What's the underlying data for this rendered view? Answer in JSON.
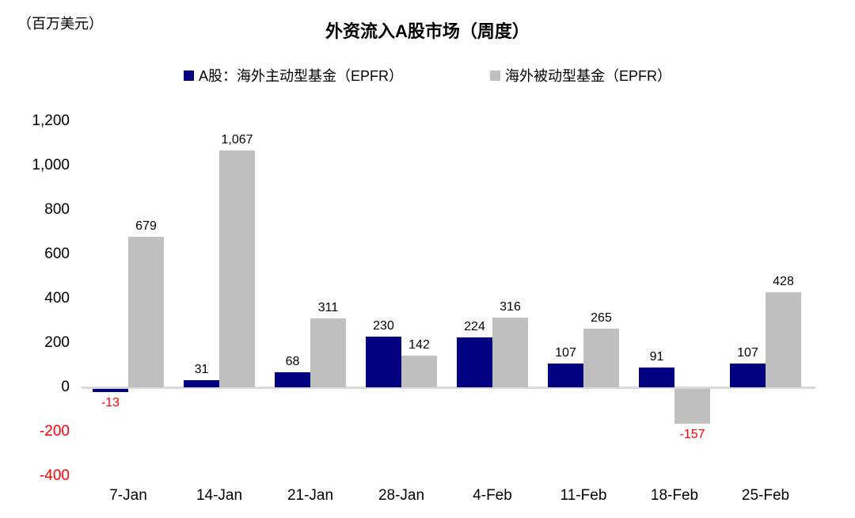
{
  "unit_label": "（百万美元）",
  "title": "外资流入A股市场（周度）",
  "colors": {
    "active_series": "#000080",
    "passive_series": "#bfbfbf",
    "negative_text": "#ff0000",
    "positive_text": "#000000",
    "axis_line": "#d9d9d9"
  },
  "chart_data": {
    "type": "bar",
    "title": "外资流入A股市场（周度）",
    "ylabel": "（百万美元）",
    "xlabel": "",
    "categories": [
      "7-Jan",
      "14-Jan",
      "21-Jan",
      "28-Jan",
      "4-Feb",
      "11-Feb",
      "18-Feb",
      "25-Feb"
    ],
    "series": [
      {
        "name": "A股：海外主动型基金（EPFR）",
        "color": "#000080",
        "values": [
          -13,
          31,
          68,
          230,
          224,
          107,
          91,
          107
        ],
        "value_labels": [
          "-13",
          "31",
          "68",
          "230",
          "224",
          "107",
          "91",
          "107"
        ]
      },
      {
        "name": "海外被动型基金（EPFR）",
        "color": "#bfbfbf",
        "values": [
          679,
          1067,
          311,
          142,
          316,
          265,
          -157,
          428
        ],
        "value_labels": [
          "679",
          "1,067",
          "311",
          "142",
          "316",
          "265",
          "-157",
          "428"
        ]
      }
    ],
    "y_ticks": [
      {
        "label": "1,200",
        "value": 1200
      },
      {
        "label": "1,000",
        "value": 1000
      },
      {
        "label": "800",
        "value": 800
      },
      {
        "label": "600",
        "value": 600
      },
      {
        "label": "400",
        "value": 400
      },
      {
        "label": "200",
        "value": 200
      },
      {
        "label": "0",
        "value": 0
      },
      {
        "label": "-200",
        "value": -200
      },
      {
        "label": "-400",
        "value": -400
      }
    ],
    "ylim": [
      -400,
      1200
    ],
    "grid": false,
    "legend_position": "top"
  }
}
